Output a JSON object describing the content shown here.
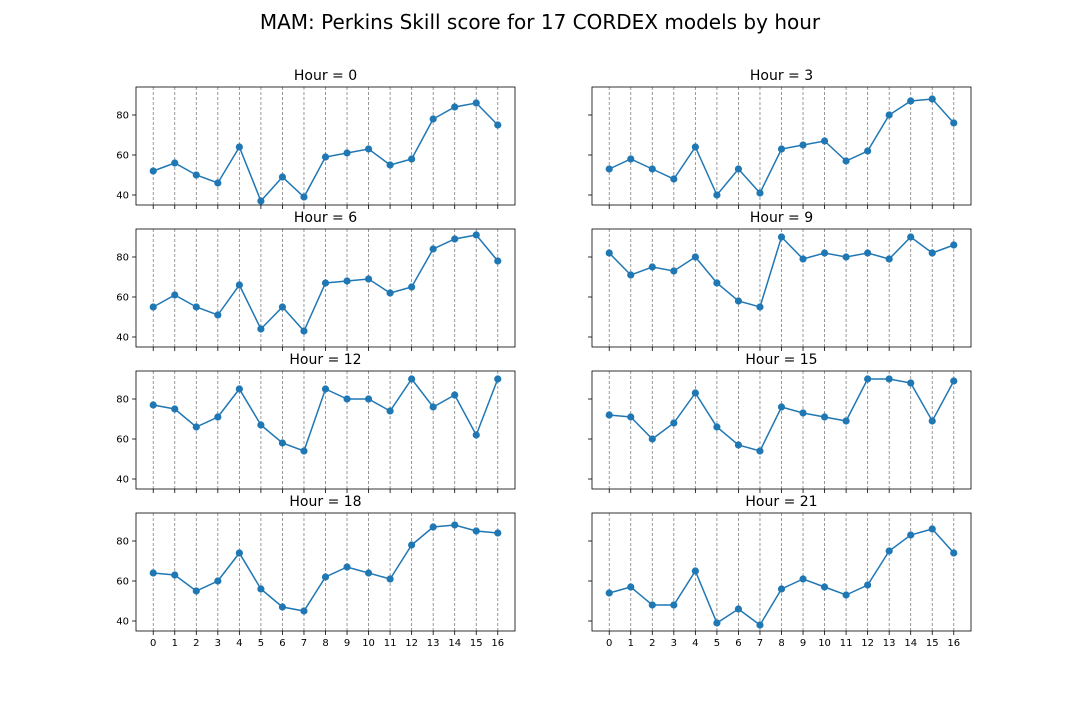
{
  "chart_data": {
    "type": "line",
    "title": "MAM: Perkins Skill score for 17 CORDEX models by hour",
    "x": [
      0,
      1,
      2,
      3,
      4,
      5,
      6,
      7,
      8,
      9,
      10,
      11,
      12,
      13,
      14,
      15,
      16
    ],
    "xlim": [
      -0.8,
      16.8
    ],
    "ylim": [
      35,
      94
    ],
    "yticks": [
      40,
      60,
      80
    ],
    "grid": "vertical dashed lines at each x",
    "color": "#1f77b4",
    "panels": [
      {
        "title": "Hour = 0",
        "values": [
          52,
          56,
          50,
          46,
          64,
          37,
          49,
          39,
          59,
          61,
          63,
          55,
          58,
          78,
          84,
          86,
          75
        ]
      },
      {
        "title": "Hour = 3",
        "values": [
          53,
          58,
          53,
          48,
          64,
          40,
          53,
          41,
          63,
          65,
          67,
          57,
          62,
          80,
          87,
          88,
          76
        ]
      },
      {
        "title": "Hour = 6",
        "values": [
          55,
          61,
          55,
          51,
          66,
          44,
          55,
          43,
          67,
          68,
          69,
          62,
          65,
          84,
          89,
          91,
          78
        ]
      },
      {
        "title": "Hour = 9",
        "values": [
          82,
          71,
          75,
          73,
          80,
          67,
          58,
          55,
          90,
          79,
          82,
          80,
          82,
          79,
          90,
          82,
          86
        ]
      },
      {
        "title": "Hour = 12",
        "values": [
          77,
          75,
          66,
          71,
          85,
          67,
          58,
          54,
          85,
          80,
          80,
          74,
          90,
          76,
          82,
          62,
          90
        ]
      },
      {
        "title": "Hour = 15",
        "values": [
          72,
          71,
          60,
          68,
          83,
          66,
          57,
          54,
          76,
          73,
          71,
          69,
          90,
          90,
          88,
          69,
          89
        ]
      },
      {
        "title": "Hour = 18",
        "values": [
          64,
          63,
          55,
          60,
          74,
          56,
          47,
          45,
          62,
          67,
          64,
          61,
          78,
          87,
          88,
          85,
          84
        ]
      },
      {
        "title": "Hour = 21",
        "values": [
          54,
          57,
          48,
          48,
          65,
          39,
          46,
          38,
          56,
          61,
          57,
          53,
          58,
          75,
          83,
          86,
          74
        ]
      }
    ]
  }
}
